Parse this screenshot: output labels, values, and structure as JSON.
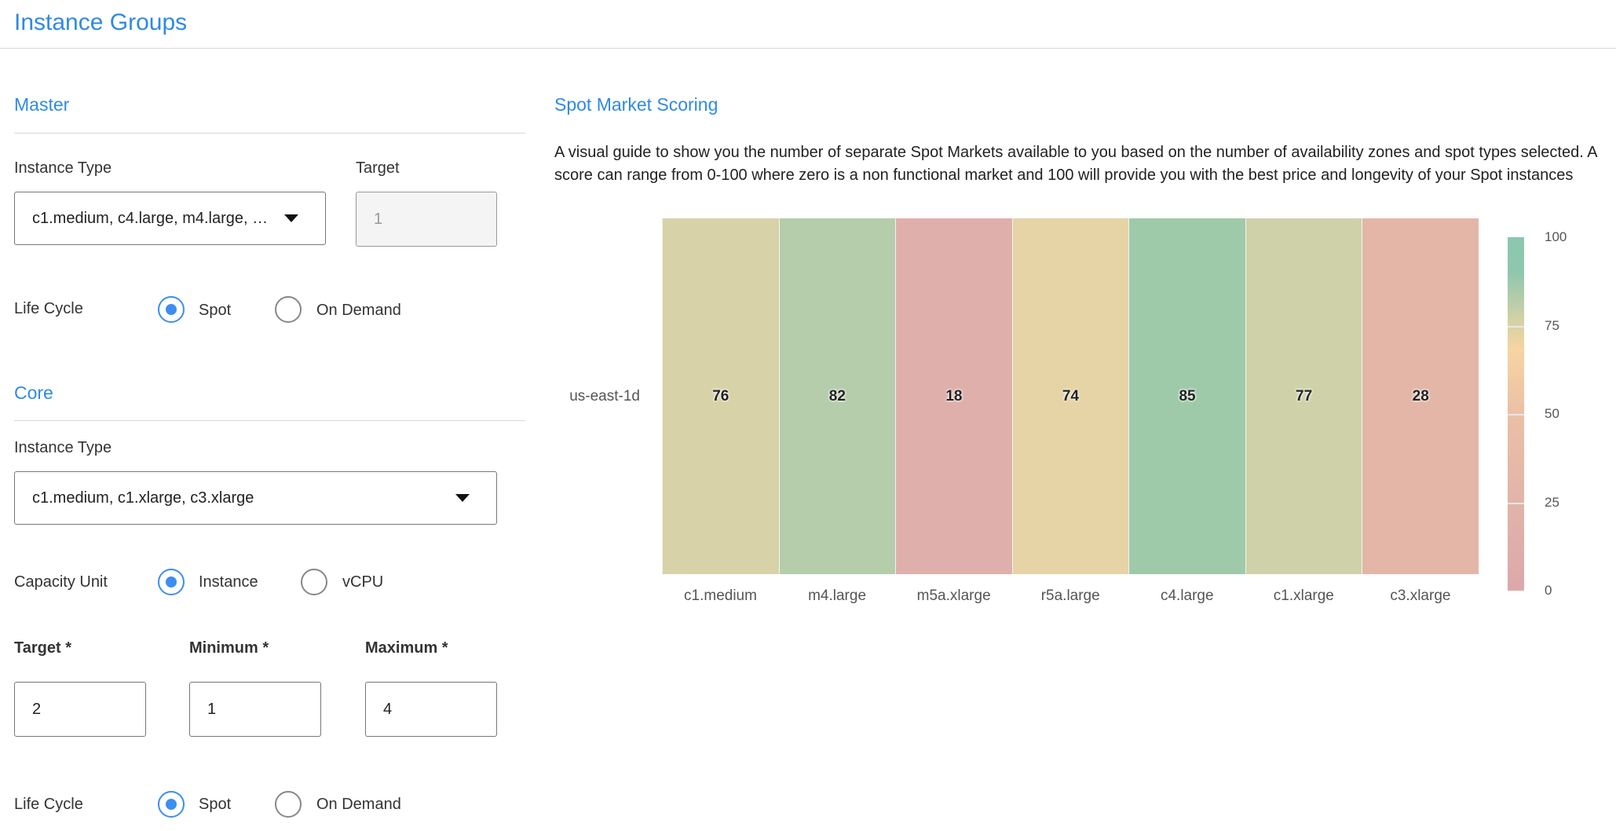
{
  "page_title": "Instance Groups",
  "master": {
    "heading": "Master",
    "instance_type_label": "Instance Type",
    "instance_type_value": "c1.medium, c4.large, m4.large, …",
    "target_label": "Target",
    "target_value": "1",
    "life_cycle_label": "Life Cycle",
    "life_cycle_options": [
      {
        "label": "Spot",
        "selected": true
      },
      {
        "label": "On Demand",
        "selected": false
      }
    ]
  },
  "core": {
    "heading": "Core",
    "instance_type_label": "Instance Type",
    "instance_type_value": "c1.medium, c1.xlarge, c3.xlarge",
    "capacity_unit_label": "Capacity Unit",
    "capacity_unit_options": [
      {
        "label": "Instance",
        "selected": true
      },
      {
        "label": "vCPU",
        "selected": false
      }
    ],
    "target_label": "Target *",
    "target_value": "2",
    "minimum_label": "Minimum *",
    "minimum_value": "1",
    "maximum_label": "Maximum *",
    "maximum_value": "4",
    "life_cycle_label": "Life Cycle",
    "life_cycle_options": [
      {
        "label": "Spot",
        "selected": true
      },
      {
        "label": "On Demand",
        "selected": false
      }
    ]
  },
  "scoring": {
    "heading": "Spot Market Scoring",
    "description": "A visual guide to show you the number of separate Spot Markets available to you based on the number of availability zones and spot types selected. A score can range from 0-100 where zero is a non functional market and 100 will provide you with the best price and longevity of your Spot instances"
  },
  "accent_color": "#2f8ae5",
  "chart_data": {
    "type": "heatmap",
    "x": [
      "c1.medium",
      "m4.large",
      "m5a.xlarge",
      "r5a.large",
      "c4.large",
      "c1.xlarge",
      "c3.xlarge"
    ],
    "y": [
      "us-east-1d"
    ],
    "values": [
      [
        76,
        82,
        18,
        74,
        85,
        77,
        28
      ]
    ],
    "cell_colors": [
      "#d8d2a8",
      "#b5cdab",
      "#dfb0ab",
      "#e6d3a6",
      "#9fcaa9",
      "#cfd2a8",
      "#e3b6a8"
    ],
    "colorbar": {
      "range": [
        0,
        100
      ],
      "ticks": [
        "100",
        "75",
        "50",
        "25",
        "0"
      ],
      "stops": [
        {
          "v": 0,
          "c": "#dca8aa"
        },
        {
          "v": 25,
          "c": "#e2b4a8"
        },
        {
          "v": 50,
          "c": "#ebc0a6"
        },
        {
          "v": 68,
          "c": "#f7d4a2"
        },
        {
          "v": 76,
          "c": "#d6d2a6"
        },
        {
          "v": 90,
          "c": "#8ec7ae"
        },
        {
          "v": 100,
          "c": "#8ac8b0"
        }
      ]
    }
  }
}
